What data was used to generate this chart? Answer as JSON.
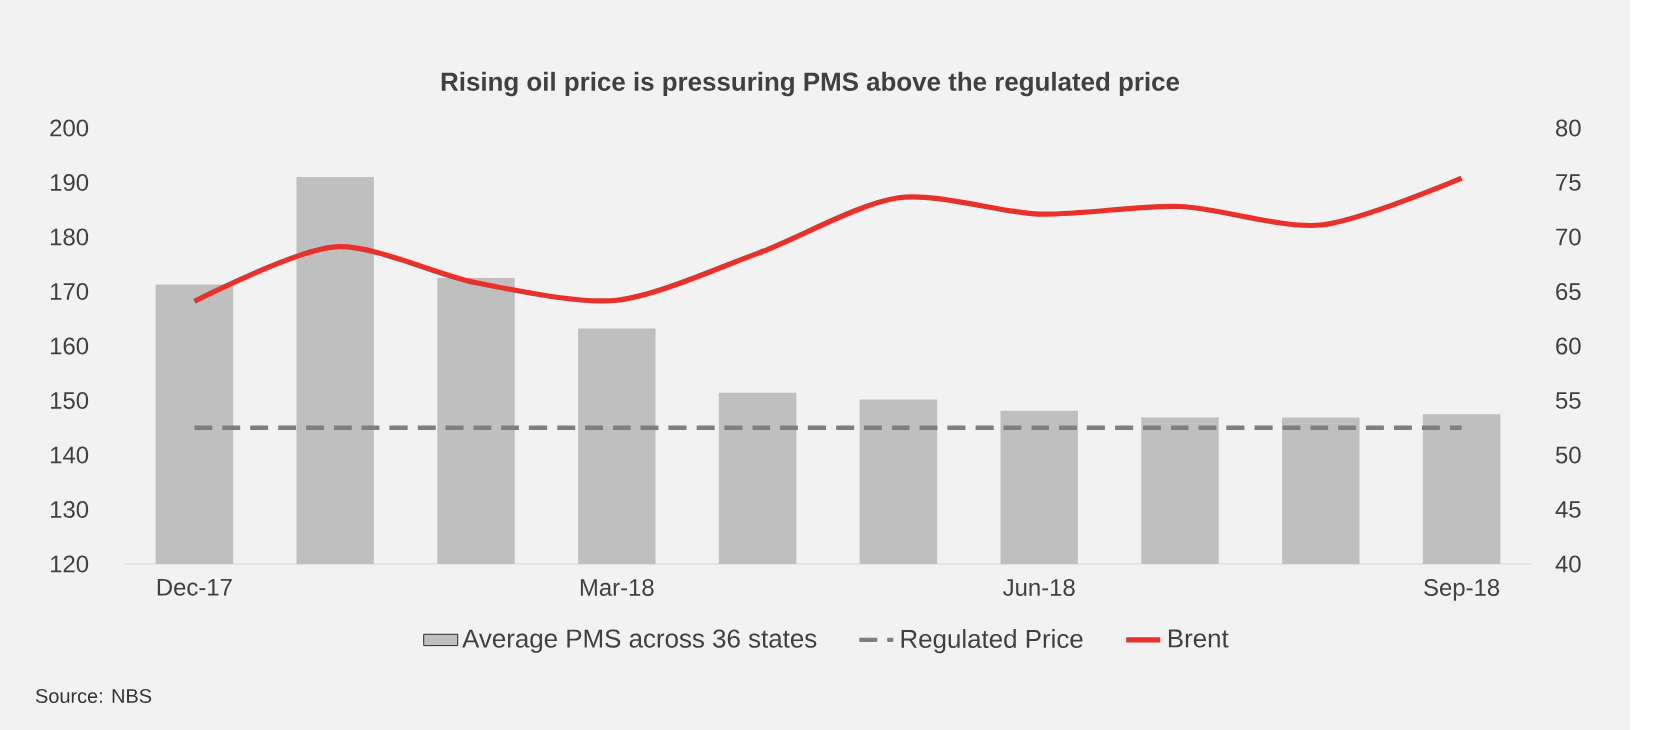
{
  "chart_data": {
    "type": "bar",
    "title": "Rising oil price is pressuring PMS above the regulated price",
    "categories": [
      "Dec-17",
      null,
      null,
      "Mar-18",
      null,
      null,
      "Jun-18",
      null,
      null,
      "Sep-18"
    ],
    "series": [
      {
        "name": "Average PMS across 36 states",
        "color": "#bfbfbf",
        "values": [
          171.3,
          191,
          172.5,
          163.2,
          151.4,
          150.2,
          148.1,
          146.9,
          146.9,
          147.5
        ]
      },
      {
        "name": "Regulated Price",
        "type": "line",
        "line_style": "dashed",
        "color": "#7f7f7f",
        "values": [
          145,
          145,
          145,
          145,
          145,
          145,
          145,
          145,
          145,
          145
        ]
      },
      {
        "name": "Brent",
        "type": "line",
        "axis": "y2",
        "color": "#e8312a",
        "values": [
          64.1,
          69.1,
          65.8,
          64.2,
          68.5,
          73.6,
          72.1,
          72.8,
          71.1,
          75.4
        ]
      }
    ],
    "ylim": [
      120,
      200
    ],
    "yticks": [
      120,
      130,
      140,
      150,
      160,
      170,
      180,
      190,
      200
    ],
    "y2lim": [
      40,
      80
    ],
    "y2ticks": [
      40,
      45,
      50,
      55,
      60,
      65,
      70,
      75,
      80
    ],
    "legend": "bottom",
    "annotations": [
      "Source: NBS"
    ]
  }
}
